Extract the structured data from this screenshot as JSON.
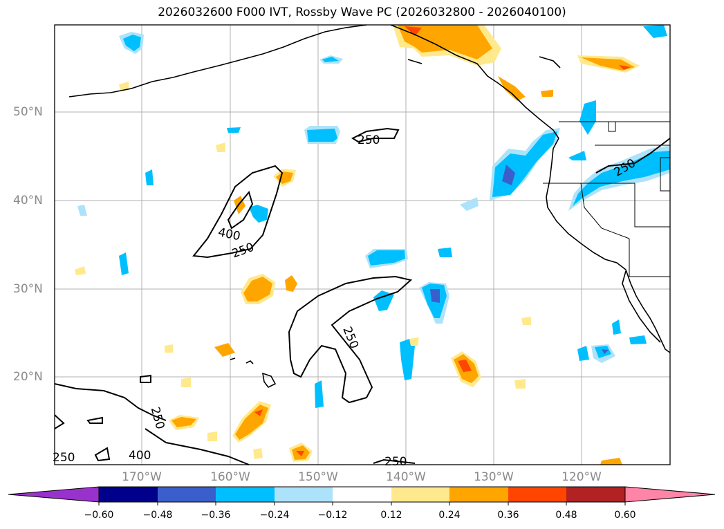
{
  "title": "2026032600 F000 IVT, Rossby Wave PC (2026032800 - 2026040100)",
  "lat_labels": [
    "50°N",
    "40°N",
    "30°N",
    "20°N"
  ],
  "lon_labels": [
    "170°W",
    "160°W",
    "150°W",
    "140°W",
    "130°W",
    "120°W"
  ],
  "contour_labels": [
    "250",
    "250",
    "400",
    "250",
    "250",
    "250",
    "400",
    "250",
    "250"
  ],
  "colorbar": {
    "ticks": [
      "−0.60",
      "−0.48",
      "−0.36",
      "−0.24",
      "−0.12",
      "0.12",
      "0.24",
      "0.36",
      "0.48",
      "0.60"
    ],
    "colors": [
      "#9932CC",
      "#00008B",
      "#3A5FCD",
      "#00BFFF",
      "#ADE3FA",
      "#FFFFFF",
      "#FFE98C",
      "#FFA500",
      "#FF4500",
      "#B22222",
      "#FF85A8"
    ]
  },
  "map_colors": {
    "land_outline": "#000000",
    "grid": "#b0b0b0",
    "contour": "#000000"
  }
}
